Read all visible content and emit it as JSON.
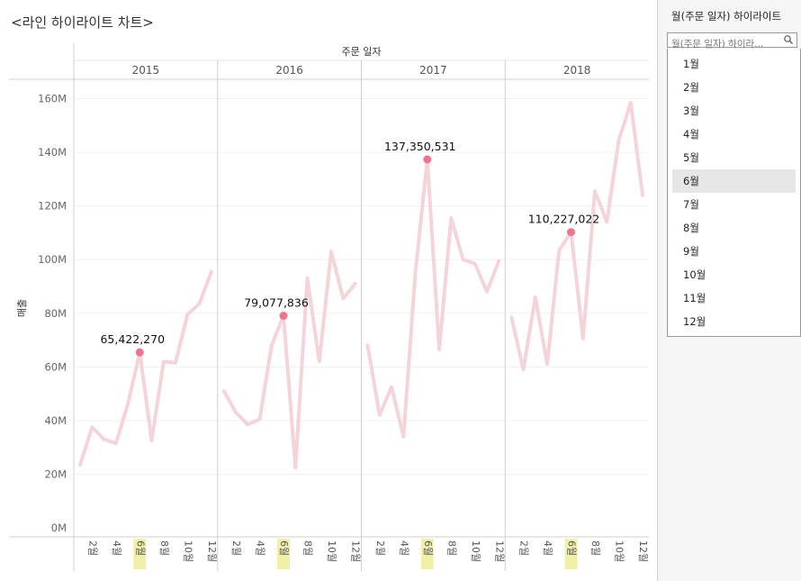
{
  "title": "<라인 하이라이트 차트>",
  "filter": {
    "title": "월(주문 일자) 하이라이트",
    "placeholder": "월(주문 일자) 하이라...",
    "options": [
      "1월",
      "2월",
      "3월",
      "4월",
      "5월",
      "6월",
      "7월",
      "8월",
      "9월",
      "10월",
      "11월",
      "12월"
    ],
    "selected": "6월"
  },
  "chart_data": {
    "type": "line",
    "column_header": "주문 일자",
    "ylabel": "매출",
    "ylim": [
      0,
      165000000
    ],
    "y_ticks": [
      {
        "value": 0,
        "label": "0M"
      },
      {
        "value": 20000000,
        "label": "20M"
      },
      {
        "value": 40000000,
        "label": "40M"
      },
      {
        "value": 60000000,
        "label": "60M"
      },
      {
        "value": 80000000,
        "label": "80M"
      },
      {
        "value": 100000000,
        "label": "100M"
      },
      {
        "value": 120000000,
        "label": "120M"
      },
      {
        "value": 140000000,
        "label": "140M"
      },
      {
        "value": 160000000,
        "label": "160M"
      }
    ],
    "x_tick_labels": [
      "2월",
      "4월",
      "6월",
      "8월",
      "10월",
      "12월"
    ],
    "highlight_month": "6월",
    "highlight_color": "#f0f0a8",
    "line_color": "#f5d4d9",
    "point_color": "#f0738e",
    "panels": [
      {
        "year": "2015",
        "values": [
          23500000,
          37500000,
          33000000,
          31500000,
          46000000,
          65422270,
          32500000,
          62000000,
          61500000,
          79500000,
          83500000,
          95500000
        ],
        "highlight_value": 65422270,
        "highlight_label": "65,422,270"
      },
      {
        "year": "2016",
        "values": [
          51000000,
          43000000,
          38500000,
          40500000,
          68000000,
          79077836,
          22500000,
          93000000,
          62000000,
          103000000,
          85500000,
          91000000
        ],
        "highlight_value": 79077836,
        "highlight_label": "79,077,836"
      },
      {
        "year": "2017",
        "values": [
          68000000,
          42000000,
          52500000,
          34000000,
          95000000,
          137350531,
          66500000,
          115500000,
          100000000,
          98500000,
          88000000,
          99500000
        ],
        "highlight_value": 137350531,
        "highlight_label": "137,350,531"
      },
      {
        "year": "2018",
        "values": [
          78500000,
          59000000,
          86000000,
          61000000,
          103500000,
          110227022,
          70500000,
          125500000,
          114000000,
          144500000,
          158500000,
          124000000
        ],
        "highlight_value": 110227022,
        "highlight_label": "110,227,022"
      }
    ]
  }
}
